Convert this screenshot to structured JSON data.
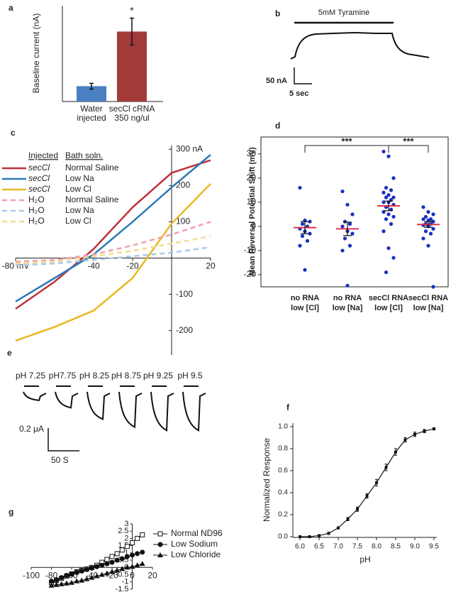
{
  "chart_data": [
    {
      "type": "bar",
      "label": "a",
      "ylabel": "Baseline current (nA)",
      "categories": [
        [
          "Water",
          "injected"
        ],
        [
          "secCl cRNA",
          "350 ng/ul"
        ]
      ],
      "values": [
        0.16,
        0.73
      ],
      "errors": [
        0.03,
        0.14
      ],
      "colors": [
        "#4a7fc1",
        "#a33a3a"
      ],
      "ylim": [
        0,
        1
      ],
      "significance": "*"
    },
    {
      "type": "trace",
      "label": "b",
      "stimulus": "5mM Tyramine",
      "scale_y": "50 nA",
      "scale_x": "5 sec"
    },
    {
      "type": "line",
      "label": "c",
      "legend_headers": [
        "Injected",
        "Bath soln."
      ],
      "x": [
        -80,
        -60,
        -40,
        -20,
        0,
        20
      ],
      "series": [
        {
          "injected": "secCl",
          "name": "Normal Saline",
          "color": "#c0303a",
          "dashed": false,
          "values": [
            -140,
            -65,
            25,
            140,
            235,
            270
          ]
        },
        {
          "injected": "secCl",
          "name": "Low Na",
          "color": "#2a7ab8",
          "dashed": false,
          "values": [
            -120,
            -55,
            10,
            100,
            195,
            285
          ]
        },
        {
          "injected": "secCl",
          "name": "Low Cl",
          "color": "#e8b820",
          "dashed": false,
          "values": [
            -228,
            -190,
            -145,
            -55,
            95,
            205
          ]
        },
        {
          "injected": "H₂O",
          "name": "Normal Saline",
          "color": "#f0a0a8",
          "dashed": true,
          "values": [
            -10,
            -5,
            10,
            35,
            65,
            100
          ]
        },
        {
          "injected": "H₂O",
          "name": "Low Na",
          "color": "#a8c8ec",
          "dashed": true,
          "values": [
            -20,
            -15,
            -5,
            5,
            15,
            30
          ]
        },
        {
          "injected": "H₂O",
          "name": "Low Cl",
          "color": "#f4dc90",
          "dashed": true,
          "values": [
            -15,
            -10,
            5,
            20,
            40,
            60
          ]
        }
      ],
      "xlim": [
        -80,
        20
      ],
      "ylim": [
        -230,
        330
      ],
      "xticks": [
        {
          "value": -80,
          "label": "-80 mV"
        },
        -40,
        -20,
        20
      ],
      "yticks": [
        {
          "value": 300,
          "label": "300 nA"
        },
        200,
        100,
        -100,
        -200
      ]
    },
    {
      "type": "strip",
      "label": "d",
      "ylabel": "Mean Reversal Potential Shift (mV)",
      "categories": [
        [
          "no RNA",
          "low [Cl]"
        ],
        [
          "no RNA",
          "low [Na]"
        ],
        [
          "secCl RNA",
          "low [Cl]"
        ],
        [
          "secCl RNA",
          "low [Na]"
        ]
      ],
      "values": [
        [
          16,
          2.5,
          2,
          1,
          0,
          -1,
          -2,
          -3,
          -4,
          -6,
          -8,
          -18
        ],
        [
          14.5,
          9,
          5,
          2,
          1,
          0,
          -2,
          -3,
          -5,
          -8,
          -10,
          -24.5
        ],
        [
          31,
          29,
          20,
          16,
          15,
          14,
          13,
          12,
          12,
          11,
          10,
          10,
          9,
          8,
          7,
          6,
          5,
          4,
          3,
          1,
          -2,
          -9,
          -13,
          -19
        ],
        [
          8,
          6,
          5,
          4,
          3,
          3,
          2.5,
          2,
          1,
          1,
          0.5,
          0,
          -1,
          -2,
          -3,
          -5,
          -8,
          -25
        ]
      ],
      "means": [
        -0.5,
        -1,
        8.5,
        0.8
      ],
      "errors": [
        2.5,
        2.8,
        2,
        1.2
      ],
      "point_color": "#1a2fc0",
      "mean_color": "#e03050",
      "ylim": [
        -25,
        37
      ],
      "yticks": [
        -20,
        -10,
        0,
        10,
        20,
        30
      ],
      "significance": [
        "***",
        "***"
      ]
    },
    {
      "type": "pulses",
      "label": "e",
      "labels": [
        "pH 7.25",
        "pH7.75",
        "pH 8.25",
        "pH 8.75",
        "pH 9.25",
        "pH 9.5"
      ],
      "values": [
        0.075,
        0.14,
        0.24,
        0.31,
        0.34,
        0.34
      ],
      "scale_y": {
        "value": 0.2,
        "label": "0.2 μA"
      },
      "scale_x": {
        "value": 50,
        "label": "50 S"
      }
    },
    {
      "type": "dose",
      "label": "f",
      "xlabel": "pH",
      "ylabel": "Normalized Response",
      "x": [
        6.0,
        6.25,
        6.5,
        6.75,
        7.0,
        7.25,
        7.5,
        7.75,
        8.0,
        8.25,
        8.5,
        8.75,
        9.0,
        9.25,
        9.5
      ],
      "values": [
        0,
        0,
        0.01,
        0.03,
        0.08,
        0.16,
        0.25,
        0.37,
        0.49,
        0.63,
        0.77,
        0.88,
        0.93,
        0.96,
        0.98
      ],
      "errors": [
        0,
        0,
        0.005,
        0.01,
        0.01,
        0.015,
        0.02,
        0.02,
        0.03,
        0.03,
        0.03,
        0.02,
        0.02,
        0.015,
        0.01
      ],
      "xlim": [
        6.0,
        9.5
      ],
      "ylim": [
        0,
        1.0
      ],
      "xticks": [
        {
          "value": 6.0,
          "label": "6.0"
        },
        6.5,
        {
          "value": 7.0,
          "label": "7.0"
        },
        7.5,
        {
          "value": 8.0,
          "label": "8.0"
        },
        8.5,
        {
          "value": 9.0,
          "label": "9.0"
        },
        9.5
      ],
      "yticks": [
        {
          "value": 0,
          "label": "0.0"
        },
        0.2,
        0.4,
        0.6,
        0.8,
        {
          "value": 1.0,
          "label": "1.0"
        }
      ]
    },
    {
      "type": "scatter",
      "label": "g",
      "x": [
        -80,
        -75,
        -70,
        -65,
        -60,
        -55,
        -50,
        -45,
        -40,
        -35,
        -30,
        -25,
        -20,
        -15,
        -10,
        -5,
        0,
        5,
        10
      ],
      "series": [
        {
          "name": "Normal ND96",
          "marker": "square-open",
          "values": [
            -1.05,
            -0.9,
            -0.75,
            -0.6,
            -0.45,
            -0.3,
            -0.2,
            -0.1,
            0,
            0.15,
            0.35,
            0.55,
            0.75,
            0.95,
            1.2,
            1.45,
            1.7,
            2.0,
            2.25
          ]
        },
        {
          "name": "Low Sodium",
          "marker": "circle",
          "values": [
            -0.95,
            -0.85,
            -0.7,
            -0.55,
            -0.45,
            -0.35,
            -0.25,
            -0.15,
            -0.05,
            0.05,
            0.15,
            0.25,
            0.35,
            0.5,
            0.6,
            0.75,
            0.85,
            0.95,
            1.05
          ]
        },
        {
          "name": "Low Chloride",
          "marker": "triangle",
          "values": [
            -1.25,
            -1.2,
            -1.15,
            -1.1,
            -1.05,
            -0.95,
            -0.9,
            -0.8,
            -0.7,
            -0.6,
            -0.5,
            -0.4,
            -0.3,
            -0.2,
            -0.1,
            0,
            0.05,
            0.15,
            0.25
          ]
        }
      ],
      "xlim": [
        -100,
        20
      ],
      "ylim": [
        -1.75,
        3.05
      ],
      "xticks": [
        -100,
        -80,
        -60,
        -40,
        -20,
        0,
        20
      ],
      "yticks": [
        -1.5,
        -1,
        -0.5,
        0,
        0.5,
        1,
        1.5,
        2,
        2.5,
        3
      ]
    }
  ]
}
